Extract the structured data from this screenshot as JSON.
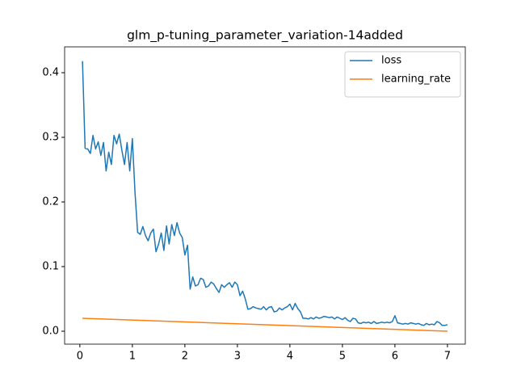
{
  "chart_data": {
    "type": "line",
    "title": "glm_p-tuning_parameter_variation-14added",
    "series": [
      {
        "name": "loss",
        "color": "#1f77b4",
        "x": [
          0.05,
          0.1,
          0.15,
          0.2,
          0.25,
          0.3,
          0.35,
          0.4,
          0.45,
          0.5,
          0.55,
          0.6,
          0.65,
          0.7,
          0.75,
          0.8,
          0.85,
          0.9,
          0.95,
          1.0,
          1.05,
          1.1,
          1.15,
          1.2,
          1.25,
          1.3,
          1.35,
          1.4,
          1.45,
          1.5,
          1.55,
          1.6,
          1.65,
          1.7,
          1.75,
          1.8,
          1.85,
          1.9,
          1.95,
          2.0,
          2.05,
          2.1,
          2.15,
          2.2,
          2.25,
          2.3,
          2.35,
          2.4,
          2.45,
          2.5,
          2.55,
          2.6,
          2.65,
          2.7,
          2.75,
          2.8,
          2.85,
          2.9,
          2.95,
          3.0,
          3.05,
          3.1,
          3.15,
          3.2,
          3.25,
          3.3,
          3.35,
          3.4,
          3.45,
          3.5,
          3.55,
          3.6,
          3.65,
          3.7,
          3.75,
          3.8,
          3.85,
          3.9,
          3.95,
          4.0,
          4.05,
          4.1,
          4.15,
          4.2,
          4.25,
          4.3,
          4.35,
          4.4,
          4.45,
          4.5,
          4.55,
          4.6,
          4.65,
          4.7,
          4.75,
          4.8,
          4.85,
          4.9,
          4.95,
          5.0,
          5.05,
          5.1,
          5.15,
          5.2,
          5.25,
          5.3,
          5.35,
          5.4,
          5.45,
          5.5,
          5.55,
          5.6,
          5.65,
          5.7,
          5.75,
          5.8,
          5.85,
          5.9,
          5.95,
          6.0,
          6.05,
          6.1,
          6.15,
          6.2,
          6.25,
          6.3,
          6.35,
          6.4,
          6.45,
          6.5,
          6.55,
          6.6,
          6.65,
          6.7,
          6.75,
          6.8,
          6.85,
          6.9,
          6.95,
          7.0
        ],
        "values": [
          0.418,
          0.283,
          0.282,
          0.275,
          0.303,
          0.282,
          0.293,
          0.272,
          0.292,
          0.248,
          0.277,
          0.258,
          0.303,
          0.29,
          0.305,
          0.28,
          0.258,
          0.292,
          0.248,
          0.298,
          0.215,
          0.153,
          0.15,
          0.162,
          0.148,
          0.14,
          0.152,
          0.158,
          0.123,
          0.135,
          0.152,
          0.125,
          0.163,
          0.135,
          0.165,
          0.148,
          0.168,
          0.152,
          0.145,
          0.118,
          0.133,
          0.065,
          0.084,
          0.07,
          0.072,
          0.082,
          0.08,
          0.068,
          0.07,
          0.076,
          0.073,
          0.066,
          0.06,
          0.072,
          0.068,
          0.072,
          0.075,
          0.068,
          0.076,
          0.072,
          0.055,
          0.062,
          0.05,
          0.034,
          0.035,
          0.038,
          0.036,
          0.035,
          0.034,
          0.038,
          0.033,
          0.037,
          0.038,
          0.03,
          0.031,
          0.036,
          0.033,
          0.036,
          0.038,
          0.042,
          0.033,
          0.043,
          0.035,
          0.03,
          0.02,
          0.02,
          0.019,
          0.021,
          0.019,
          0.022,
          0.02,
          0.021,
          0.023,
          0.022,
          0.021,
          0.022,
          0.019,
          0.022,
          0.02,
          0.018,
          0.021,
          0.017,
          0.015,
          0.02,
          0.019,
          0.013,
          0.012,
          0.014,
          0.013,
          0.014,
          0.012,
          0.015,
          0.012,
          0.013,
          0.014,
          0.013,
          0.014,
          0.013,
          0.015,
          0.024,
          0.013,
          0.012,
          0.011,
          0.012,
          0.011,
          0.013,
          0.012,
          0.011,
          0.012,
          0.01,
          0.009,
          0.012,
          0.01,
          0.011,
          0.01,
          0.015,
          0.013,
          0.009,
          0.009,
          0.01
        ]
      },
      {
        "name": "learning_rate",
        "color": "#ff7f0e",
        "x": [
          0.05,
          7.0
        ],
        "values": [
          0.02,
          0.0
        ]
      }
    ],
    "xlim": [
      -0.29,
      7.34
    ],
    "ylim": [
      -0.02,
      0.44
    ],
    "xticks": [
      0,
      1,
      2,
      3,
      4,
      5,
      6,
      7
    ],
    "yticks": [
      {
        "value": 0,
        "label": "0.0"
      },
      0.1,
      0.2,
      0.3,
      0.4
    ],
    "legend": "upper right"
  }
}
